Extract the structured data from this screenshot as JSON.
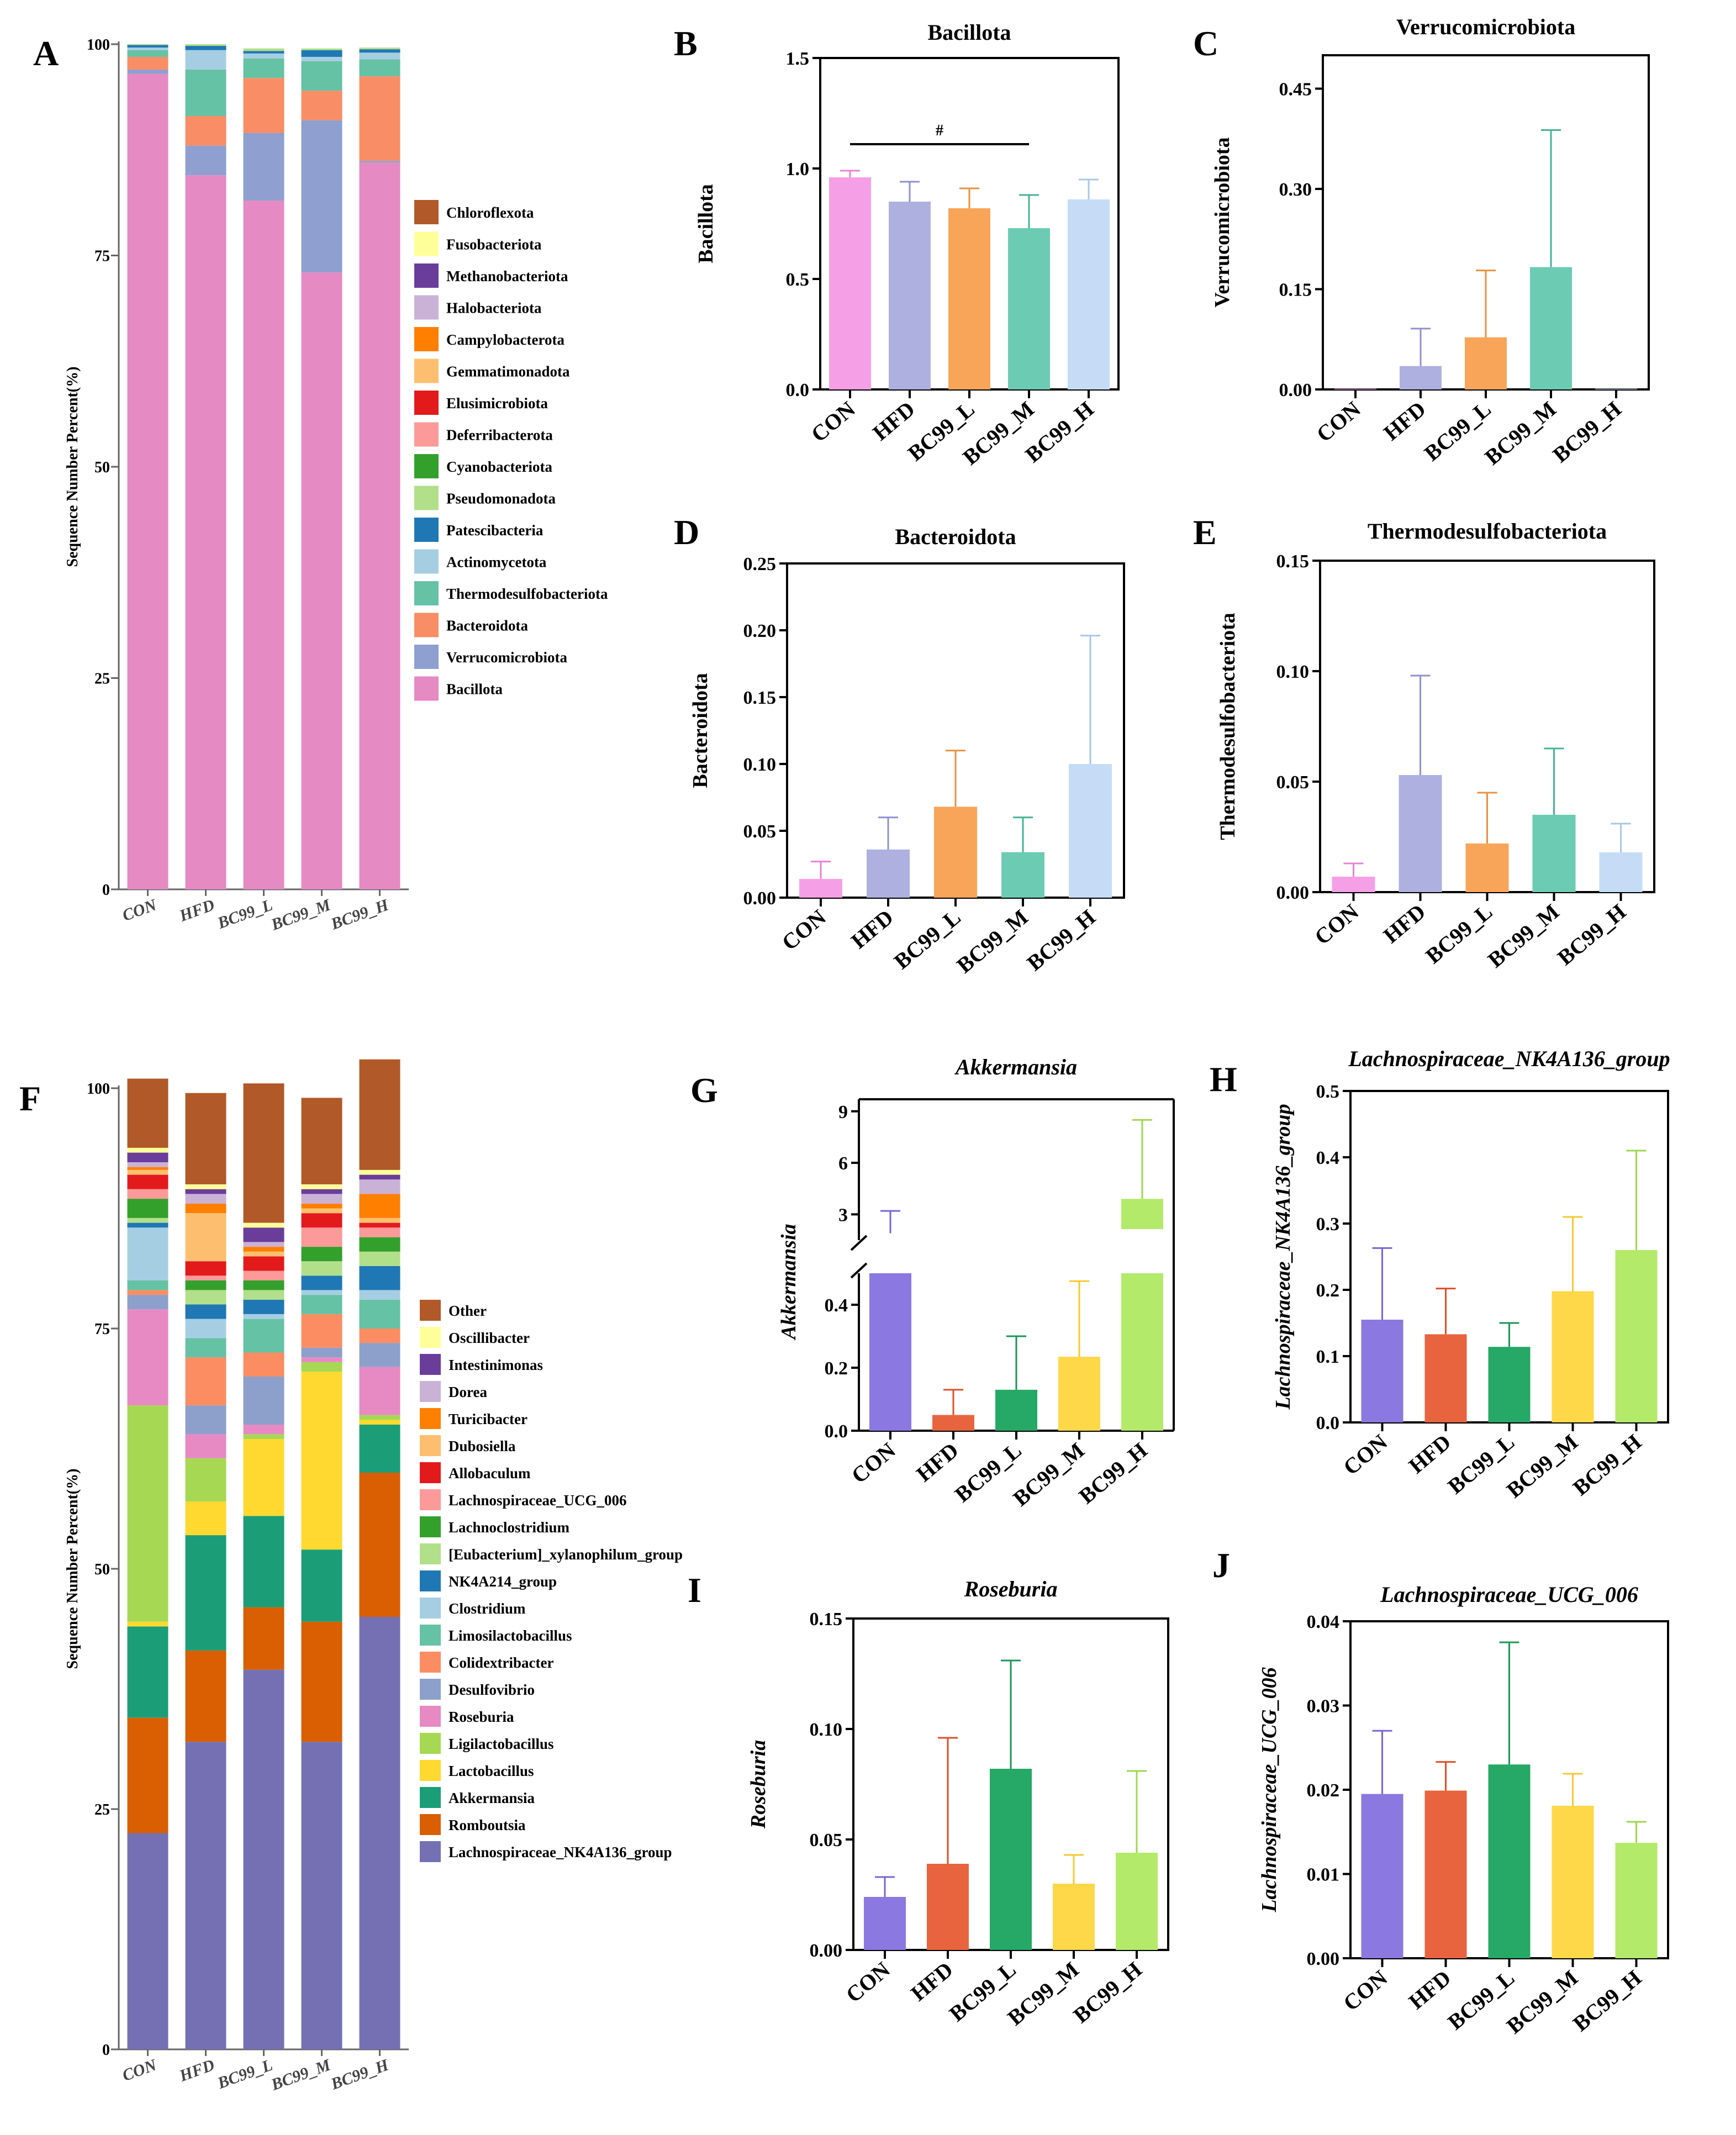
{
  "chart_data": [
    {
      "id": "A",
      "letter": "A",
      "type": "stacked-bar",
      "title": "",
      "ylabel": "Sequence Number Percent(%)",
      "ylim": [
        0,
        100
      ],
      "yticks": [
        0,
        25,
        50,
        75,
        100
      ],
      "categories": [
        "CON",
        "HFD",
        "BC99_L",
        "BC99_M",
        "BC99_H"
      ],
      "series": [
        {
          "name": "Bacillota",
          "color": "#e58ac3",
          "values": [
            96.5,
            84.5,
            81.5,
            73.0,
            86.0
          ]
        },
        {
          "name": "Verrucomicrobiota",
          "color": "#8e9fd0",
          "values": [
            0.5,
            3.5,
            8.0,
            18.0,
            0.2
          ]
        },
        {
          "name": "Bacteroidota",
          "color": "#f98d66",
          "values": [
            1.5,
            3.5,
            6.5,
            3.5,
            10.0
          ]
        },
        {
          "name": "Thermodesulfobacteriota",
          "color": "#66c2a5",
          "values": [
            0.8,
            5.5,
            2.3,
            3.5,
            2.0
          ]
        },
        {
          "name": "Actinomycetota",
          "color": "#a6cee3",
          "values": [
            0.3,
            2.3,
            0.6,
            0.5,
            0.8
          ]
        },
        {
          "name": "Patescibacteria",
          "color": "#1f78b4",
          "values": [
            0.3,
            0.5,
            0.3,
            0.8,
            0.4
          ]
        },
        {
          "name": "Pseudomonadota",
          "color": "#b2df8a",
          "values": [
            0.1,
            0.2,
            0.3,
            0.2,
            0.2
          ]
        },
        {
          "name": "Cyanobacteriota",
          "color": "#33a02c",
          "values": [
            0.0,
            0.0,
            0.0,
            0.0,
            0.0
          ]
        },
        {
          "name": "Deferribacterota",
          "color": "#fb9a99",
          "values": [
            0.0,
            0.0,
            0.0,
            0.0,
            0.0
          ]
        },
        {
          "name": "Elusimicrobiota",
          "color": "#e31a1c",
          "values": [
            0.0,
            0.0,
            0.0,
            0.0,
            0.0
          ]
        },
        {
          "name": "Gemmatimonadota",
          "color": "#fdbf6f",
          "values": [
            0.0,
            0.0,
            0.0,
            0.0,
            0.0
          ]
        },
        {
          "name": "Campylobacterota",
          "color": "#ff7f00",
          "values": [
            0.0,
            0.0,
            0.0,
            0.0,
            0.0
          ]
        },
        {
          "name": "Halobacteriota",
          "color": "#cab2d6",
          "values": [
            0.0,
            0.0,
            0.0,
            0.0,
            0.0
          ]
        },
        {
          "name": "Methanobacteriota",
          "color": "#6a3d9a",
          "values": [
            0.0,
            0.0,
            0.0,
            0.0,
            0.0
          ]
        },
        {
          "name": "Fusobacteriota",
          "color": "#ffff99",
          "values": [
            0.0,
            0.0,
            0.0,
            0.0,
            0.0
          ]
        },
        {
          "name": "Chloroflexota",
          "color": "#b15928",
          "values": [
            0.0,
            0.0,
            0.0,
            0.0,
            0.0
          ]
        }
      ],
      "legend_order": [
        "Chloroflexota",
        "Fusobacteriota",
        "Methanobacteriota",
        "Halobacteriota",
        "Campylobacterota",
        "Gemmatimonadota",
        "Elusimicrobiota",
        "Deferribacterota",
        "Cyanobacteriota",
        "Pseudomonadota",
        "Patescibacteria",
        "Actinomycetota",
        "Thermodesulfobacteriota",
        "Bacteroidota",
        "Verrucomicrobiota",
        "Bacillota"
      ],
      "legend_placement": "right"
    },
    {
      "id": "B",
      "letter": "B",
      "type": "bar",
      "title": "Bacillota",
      "title_italic": false,
      "ylabel": "Bacillota",
      "ylim": [
        0,
        1.5
      ],
      "yticks": [
        0.0,
        0.5,
        1.0,
        1.5
      ],
      "tick_labels": [
        "0.0",
        "0.5",
        "1.0",
        "1.5"
      ],
      "categories": [
        "CON",
        "HFD",
        "BC99_L",
        "BC99_M",
        "BC99_H"
      ],
      "values": [
        0.96,
        0.85,
        0.82,
        0.73,
        0.86
      ],
      "errors": [
        0.03,
        0.09,
        0.09,
        0.15,
        0.09
      ],
      "colors": [
        "#f5a0e6",
        "#aeb0e0",
        "#f8a55a",
        "#6ccbb3",
        "#c6dcf6"
      ],
      "err_colors": [
        "#e682d8",
        "#8e92cf",
        "#e8913f",
        "#46b298",
        "#a8c6ee"
      ],
      "significance": [
        {
          "from": "CON",
          "to": "BC99_M",
          "label": "#",
          "y": 1.11
        }
      ]
    },
    {
      "id": "C",
      "letter": "C",
      "type": "bar",
      "title": "Verrucomicrobiota",
      "title_italic": false,
      "ylabel": "Verrucomicrobiota",
      "ylim": [
        0,
        0.5
      ],
      "yticks": [
        0.0,
        0.15,
        0.3,
        0.45
      ],
      "tick_labels": [
        "0.00",
        "0.15",
        "0.30",
        "0.45"
      ],
      "categories": [
        "CON",
        "HFD",
        "BC99_L",
        "BC99_M",
        "BC99_H"
      ],
      "values": [
        0.001,
        0.035,
        0.078,
        0.183,
        0.001
      ],
      "errors": [
        0.0,
        0.056,
        0.1,
        0.205,
        0.0
      ],
      "colors": [
        "#f5a0e6",
        "#aeb0e0",
        "#f8a55a",
        "#6ccbb3",
        "#c6dcf6"
      ],
      "err_colors": [
        "#e682d8",
        "#8e92cf",
        "#e8913f",
        "#46b298",
        "#a8c6ee"
      ]
    },
    {
      "id": "D",
      "letter": "D",
      "type": "bar",
      "title": "Bacteroidota",
      "title_italic": false,
      "ylabel": "Bacteroidota",
      "ylim": [
        0,
        0.25
      ],
      "yticks": [
        0.0,
        0.05,
        0.1,
        0.15,
        0.2,
        0.25
      ],
      "tick_labels": [
        "0.00",
        "0.05",
        "0.10",
        "0.15",
        "0.20",
        "0.25"
      ],
      "categories": [
        "CON",
        "HFD",
        "BC99_L",
        "BC99_M",
        "BC99_H"
      ],
      "values": [
        0.014,
        0.036,
        0.068,
        0.034,
        0.1
      ],
      "errors": [
        0.013,
        0.024,
        0.042,
        0.026,
        0.096
      ],
      "colors": [
        "#f5a0e6",
        "#aeb0e0",
        "#f8a55a",
        "#6ccbb3",
        "#c6dcf6"
      ],
      "err_colors": [
        "#e682d8",
        "#8e92cf",
        "#e8913f",
        "#46b298",
        "#a8c6ee"
      ]
    },
    {
      "id": "E",
      "letter": "E",
      "type": "bar",
      "title": "Thermodesulfobacteriota",
      "title_italic": false,
      "ylabel": "Thermodesulfobacteriota",
      "ylim": [
        0,
        0.15
      ],
      "yticks": [
        0.0,
        0.05,
        0.1,
        0.15
      ],
      "tick_labels": [
        "0.00",
        "0.05",
        "0.10",
        "0.15"
      ],
      "categories": [
        "CON",
        "HFD",
        "BC99_L",
        "BC99_M",
        "BC99_H"
      ],
      "values": [
        0.007,
        0.053,
        0.022,
        0.035,
        0.018
      ],
      "errors": [
        0.006,
        0.045,
        0.023,
        0.03,
        0.013
      ],
      "colors": [
        "#f5a0e6",
        "#aeb0e0",
        "#f8a55a",
        "#6ccbb3",
        "#c6dcf6"
      ],
      "err_colors": [
        "#e682d8",
        "#8e92cf",
        "#e8913f",
        "#46b298",
        "#a8c6ee"
      ]
    },
    {
      "id": "F",
      "letter": "F",
      "type": "stacked-bar",
      "title": "",
      "ylabel": "Sequence Number Percent(%)",
      "ylim": [
        0,
        100
      ],
      "yticks": [
        0,
        25,
        50,
        75,
        100
      ],
      "categories": [
        "CON",
        "HFD",
        "BC99_L",
        "BC99_M",
        "BC99_H"
      ],
      "series": [
        {
          "name": "Lachnospiraceae_NK4A136_group",
          "color": "#7570b3",
          "values": [
            22.5,
            32.0,
            39.5,
            32.0,
            45.0
          ]
        },
        {
          "name": "Romboutsia",
          "color": "#d95f02",
          "values": [
            12.0,
            9.5,
            6.5,
            12.5,
            15.0
          ]
        },
        {
          "name": "Akkermansia",
          "color": "#1b9e77",
          "values": [
            9.5,
            12.0,
            9.5,
            7.5,
            5.0
          ]
        },
        {
          "name": "Lactobacillus",
          "color": "#ffd92f",
          "values": [
            0.5,
            3.5,
            8.0,
            18.5,
            0.5
          ]
        },
        {
          "name": "Ligilactobacillus",
          "color": "#a6d854",
          "values": [
            22.5,
            4.5,
            0.5,
            1.0,
            0.5
          ]
        },
        {
          "name": "Roseburia",
          "color": "#e78ac3",
          "values": [
            10.0,
            2.5,
            1.0,
            0.5,
            5.0
          ]
        },
        {
          "name": "Desulfovibrio",
          "color": "#8da0cb",
          "values": [
            1.5,
            3.0,
            5.0,
            1.0,
            2.5
          ]
        },
        {
          "name": "Colidextribacter",
          "color": "#fc8d62",
          "values": [
            0.5,
            5.0,
            2.5,
            3.5,
            1.5
          ]
        },
        {
          "name": "Limosilactobacillus",
          "color": "#66c2a5",
          "values": [
            1.0,
            2.0,
            3.5,
            2.0,
            3.0
          ]
        },
        {
          "name": "Clostridium",
          "color": "#a6cee3",
          "values": [
            5.5,
            2.0,
            0.5,
            0.5,
            1.0
          ]
        },
        {
          "name": "NK4A214_group",
          "color": "#1f78b4",
          "values": [
            0.5,
            1.5,
            1.5,
            1.5,
            2.5
          ]
        },
        {
          "name": "[Eubacterium]_xylanophilum_group",
          "color": "#b2df8a",
          "values": [
            0.5,
            1.5,
            1.0,
            1.5,
            1.5
          ]
        },
        {
          "name": "Lachnoclostridium",
          "color": "#33a02c",
          "values": [
            2.0,
            1.0,
            1.0,
            1.5,
            1.5
          ]
        },
        {
          "name": "Lachnospiraceae_UCG_006",
          "color": "#fb9a99",
          "values": [
            1.0,
            0.5,
            1.0,
            2.0,
            1.0
          ]
        },
        {
          "name": "Allobaculum",
          "color": "#e31a1c",
          "values": [
            1.5,
            1.5,
            1.5,
            1.5,
            0.5
          ]
        },
        {
          "name": "Dubosiella",
          "color": "#fdbf6f",
          "values": [
            0.5,
            5.0,
            0.5,
            0.5,
            0.5
          ]
        },
        {
          "name": "Turicibacter",
          "color": "#ff7f00",
          "values": [
            0.3,
            1.0,
            0.5,
            0.5,
            2.5
          ]
        },
        {
          "name": "Dorea",
          "color": "#cab2d6",
          "values": [
            0.5,
            1.0,
            0.5,
            1.0,
            1.5
          ]
        },
        {
          "name": "Intestinimonas",
          "color": "#6a3d9a",
          "values": [
            1.0,
            0.5,
            1.5,
            0.5,
            0.5
          ]
        },
        {
          "name": "Oscillibacter",
          "color": "#ffff99",
          "values": [
            0.5,
            0.5,
            0.5,
            0.5,
            0.5
          ]
        },
        {
          "name": "Other",
          "color": "#b15928",
          "values": [
            7.2,
            9.5,
            14.5,
            9.0,
            11.5
          ]
        }
      ],
      "legend_order": [
        "Other",
        "Oscillibacter",
        "Intestinimonas",
        "Dorea",
        "Turicibacter",
        "Dubosiella",
        "Allobaculum",
        "Lachnospiraceae_UCG_006",
        "Lachnoclostridium",
        "[Eubacterium]_xylanophilum_group",
        "NK4A214_group",
        "Clostridium",
        "Limosilactobacillus",
        "Colidextribacter",
        "Desulfovibrio",
        "Roseburia",
        "Ligilactobacillus",
        "Lactobacillus",
        "Akkermansia",
        "Romboutsia",
        "Lachnospiraceae_NK4A136_group"
      ],
      "legend_placement": "right"
    },
    {
      "id": "G",
      "letter": "G",
      "type": "bar-broken-axis",
      "title": "Akkermansia",
      "title_italic": true,
      "ylabel": "Akkermansia",
      "lower_ylim": [
        0,
        0.5
      ],
      "lower_yticks": [
        0.0,
        0.2,
        0.4
      ],
      "lower_tick_labels": [
        "0.0",
        "0.2",
        "0.4"
      ],
      "upper_ylim": [
        1.5,
        9.7
      ],
      "upper_yticks": [
        3,
        6,
        9
      ],
      "upper_tick_labels": [
        "3",
        "6",
        "9"
      ],
      "categories": [
        "CON",
        "HFD",
        "BC99_L",
        "BC99_M",
        "BC99_H"
      ],
      "values": [
        1.9,
        0.05,
        0.13,
        0.235,
        3.9
      ],
      "errors": [
        1.3,
        0.08,
        0.17,
        0.24,
        4.6
      ],
      "colors": [
        "#8b78e0",
        "#e8643f",
        "#26a866",
        "#ffd84a",
        "#b3ea6a"
      ],
      "err_colors": [
        "#7a64d8",
        "#e04e28",
        "#1c9459",
        "#f7c932",
        "#9ed84e"
      ]
    },
    {
      "id": "H",
      "letter": "H",
      "type": "bar",
      "title": "Lachnospiraceae_NK4A136_group",
      "title_italic": true,
      "ylabel": "Lachnospiraceae_NK4A136_group",
      "ylim": [
        0,
        0.5
      ],
      "yticks": [
        0.0,
        0.1,
        0.2,
        0.3,
        0.4,
        0.5
      ],
      "tick_labels": [
        "0.0",
        "0.1",
        "0.2",
        "0.3",
        "0.4",
        "0.5"
      ],
      "categories": [
        "CON",
        "HFD",
        "BC99_L",
        "BC99_M",
        "BC99_H"
      ],
      "values": [
        0.155,
        0.133,
        0.114,
        0.198,
        0.26
      ],
      "errors": [
        0.108,
        0.069,
        0.036,
        0.112,
        0.15
      ],
      "colors": [
        "#8b78e0",
        "#e8643f",
        "#26a866",
        "#ffd84a",
        "#b3ea6a"
      ],
      "err_colors": [
        "#7a64d8",
        "#e04e28",
        "#1c9459",
        "#f7c932",
        "#9ed84e"
      ]
    },
    {
      "id": "I",
      "letter": "I",
      "type": "bar",
      "title": "Roseburia",
      "title_italic": true,
      "ylabel": "Roseburia",
      "ylim": [
        0,
        0.15
      ],
      "yticks": [
        0.0,
        0.05,
        0.1,
        0.15
      ],
      "tick_labels": [
        "0.00",
        "0.05",
        "0.10",
        "0.15"
      ],
      "categories": [
        "CON",
        "HFD",
        "BC99_L",
        "BC99_M",
        "BC99_H"
      ],
      "values": [
        0.024,
        0.039,
        0.082,
        0.03,
        0.044
      ],
      "errors": [
        0.009,
        0.057,
        0.049,
        0.013,
        0.037
      ],
      "colors": [
        "#8b78e0",
        "#e8643f",
        "#26a866",
        "#ffd84a",
        "#b3ea6a"
      ],
      "err_colors": [
        "#7a64d8",
        "#e04e28",
        "#1c9459",
        "#f7c932",
        "#9ed84e"
      ]
    },
    {
      "id": "J",
      "letter": "J",
      "type": "bar",
      "title": "Lachnospiraceae_UCG_006",
      "title_italic": true,
      "ylabel": "Lachnospiraceae_UCG_006",
      "ylim": [
        0,
        0.04
      ],
      "yticks": [
        0.0,
        0.01,
        0.02,
        0.03,
        0.04
      ],
      "tick_labels": [
        "0.00",
        "0.01",
        "0.02",
        "0.03",
        "0.04"
      ],
      "categories": [
        "CON",
        "HFD",
        "BC99_L",
        "BC99_M",
        "BC99_H"
      ],
      "values": [
        0.0195,
        0.0199,
        0.023,
        0.0181,
        0.0137
      ],
      "errors": [
        0.0075,
        0.0034,
        0.0145,
        0.0038,
        0.0025
      ],
      "colors": [
        "#8b78e0",
        "#e8643f",
        "#26a866",
        "#ffd84a",
        "#b3ea6a"
      ],
      "err_colors": [
        "#7a64d8",
        "#e04e28",
        "#1c9459",
        "#f7c932",
        "#9ed84e"
      ]
    }
  ]
}
